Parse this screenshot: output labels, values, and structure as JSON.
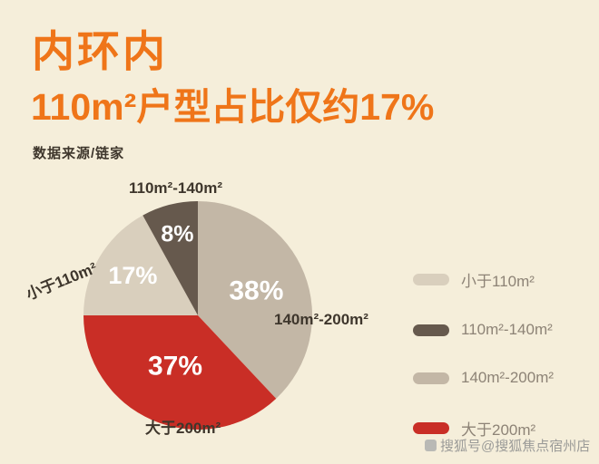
{
  "page": {
    "background": "#f5eeda",
    "accent_orange": "#ef7519"
  },
  "header": {
    "title_line1": "内环内",
    "title_line2": "110m²户型占比仅约17%",
    "source": "数据来源/链家"
  },
  "chart_data": {
    "type": "pie",
    "title": "内环内110m²户型占比仅约17%",
    "source": "数据来源/链家",
    "legend_position": "right",
    "start_angle_clockwise_from_top": 270,
    "slices": [
      {
        "label": "小于110m²",
        "value": 17,
        "display": "17%",
        "color": "#d9cfbd"
      },
      {
        "label": "110m²-140m²",
        "value": 8,
        "display": "8%",
        "color": "#66594d"
      },
      {
        "label": "140m²-200m²",
        "value": 38,
        "display": "38%",
        "color": "#c3b7a6"
      },
      {
        "label": "大于200m²",
        "value": 37,
        "display": "37%",
        "color": "#c92e26"
      }
    ]
  },
  "watermark": {
    "text": "搜狐号@搜狐焦点宿州店"
  }
}
